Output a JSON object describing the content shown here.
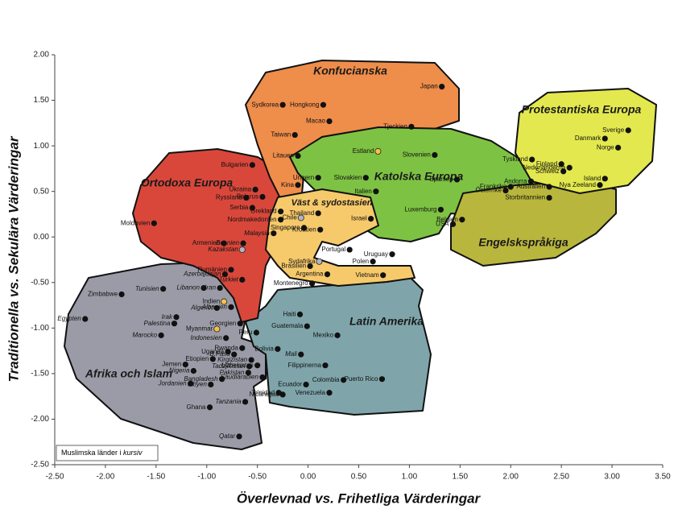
{
  "chart_data": {
    "type": "scatter",
    "xlabel": "Överlevnad vs. Frihetliga Värderingar",
    "ylabel": "Traditionella vs. Sekulära Värderingar",
    "note": {
      "text": "Muslimska länder i",
      "emphasis": "kursiv"
    },
    "xlim": [
      -2.5,
      3.5
    ],
    "ylim": [
      -2.5,
      2.0
    ],
    "xticks": [
      {
        "value": -2.5,
        "label": "-2.50"
      },
      {
        "value": -2,
        "label": "-2.00"
      },
      {
        "value": -1.5,
        "label": "-1.50"
      },
      {
        "value": -1,
        "label": "-1.00"
      },
      {
        "value": -0.5,
        "label": "-0.50"
      },
      {
        "value": 0,
        "label": "0.00"
      },
      {
        "value": 0.5,
        "label": "0.50"
      },
      {
        "value": 1,
        "label": "1.00"
      },
      {
        "value": 1.5,
        "label": "1.50"
      },
      {
        "value": 2,
        "label": "2.00"
      },
      {
        "value": 2.5,
        "label": "2.50"
      },
      {
        "value": 3,
        "label": "3.00"
      },
      {
        "value": 3.5,
        "label": "3.50"
      }
    ],
    "yticks": [
      {
        "value": -2.5,
        "label": "-2.50"
      },
      {
        "value": -2,
        "label": "-2.00"
      },
      {
        "value": -1.5,
        "label": "-1.50"
      },
      {
        "value": -1,
        "label": "-1.00"
      },
      {
        "value": -0.5,
        "label": "-0.50"
      },
      {
        "value": 0,
        "label": "0.00"
      },
      {
        "value": 0.5,
        "label": "0.50"
      },
      {
        "value": 1,
        "label": "1.00"
      },
      {
        "value": 1.5,
        "label": "1.50"
      },
      {
        "value": 2,
        "label": "2.00"
      }
    ],
    "regions": [
      {
        "name": "Afrika och Islam",
        "color": "#9b9ba8"
      },
      {
        "name": "Latin Amerika",
        "color": "#7fa5ab"
      },
      {
        "name": "Ortodoxa Europa",
        "color": "#d9473b"
      },
      {
        "name": "Konfucianska",
        "color": "#ef8d4b"
      },
      {
        "name": "Katolska Europa",
        "color": "#7ec243"
      },
      {
        "name": "Engelskspråkiga",
        "color": "#b9b63d"
      },
      {
        "name": "Protestantiska Europa",
        "color": "#e3e84e"
      },
      {
        "name": "Väst & sydostasien",
        "color": "#f6c96b"
      }
    ],
    "color": "#111111",
    "points": [
      {
        "label": "Japan",
        "x": 1.32,
        "y": 1.65
      },
      {
        "label": "Sydkorea",
        "x": -0.25,
        "y": 1.45
      },
      {
        "label": "Hongkong",
        "x": 0.15,
        "y": 1.45
      },
      {
        "label": "Macao",
        "x": 0.21,
        "y": 1.27
      },
      {
        "label": "Taiwan",
        "x": -0.13,
        "y": 1.12
      },
      {
        "label": "Tjeckien",
        "x": 1.02,
        "y": 1.21
      },
      {
        "label": "Estland",
        "x": 0.69,
        "y": 0.94,
        "color": "#f5c342"
      },
      {
        "label": "Litauen",
        "x": -0.1,
        "y": 0.89
      },
      {
        "label": "Slovenien",
        "x": 1.25,
        "y": 0.9
      },
      {
        "label": "Bulgarien",
        "x": -0.55,
        "y": 0.79
      },
      {
        "label": "Ungern",
        "x": 0.1,
        "y": 0.65
      },
      {
        "label": "Slovakien",
        "x": 0.57,
        "y": 0.65
      },
      {
        "label": "Spanien",
        "x": 1.47,
        "y": 0.63
      },
      {
        "label": "Kina",
        "x": -0.1,
        "y": 0.57
      },
      {
        "label": "Ukraina",
        "x": -0.52,
        "y": 0.52
      },
      {
        "label": "Ryssland",
        "x": -0.61,
        "y": 0.43
      },
      {
        "label": "Belarus",
        "x": -0.45,
        "y": 0.44
      },
      {
        "label": "Andorra",
        "x": 2.2,
        "y": 0.61
      },
      {
        "label": "Österrike",
        "x": 1.95,
        "y": 0.51
      },
      {
        "label": "Frankrike",
        "x": 2.0,
        "y": 0.55
      },
      {
        "label": "Tyskland",
        "x": 2.21,
        "y": 0.85
      },
      {
        "label": "Finland",
        "x": 2.5,
        "y": 0.8
      },
      {
        "label": "Nederländerna",
        "x": 2.58,
        "y": 0.76
      },
      {
        "label": "Schweiz",
        "x": 2.52,
        "y": 0.72
      },
      {
        "label": "Australien",
        "x": 2.38,
        "y": 0.55
      },
      {
        "label": "Storbritannien",
        "x": 2.38,
        "y": 0.43
      },
      {
        "label": "Nya Zeeland",
        "x": 2.88,
        "y": 0.57
      },
      {
        "label": "Island",
        "x": 2.93,
        "y": 0.64
      },
      {
        "label": "Danmark",
        "x": 2.93,
        "y": 1.08
      },
      {
        "label": "Sverige",
        "x": 3.16,
        "y": 1.17
      },
      {
        "label": "Norge",
        "x": 3.06,
        "y": 0.98
      },
      {
        "label": "Italien",
        "x": 0.67,
        "y": 0.5
      },
      {
        "label": "Luxemburg",
        "x": 1.31,
        "y": 0.3
      },
      {
        "label": "Belgien",
        "x": 1.52,
        "y": 0.19
      },
      {
        "label": "USA",
        "x": 1.43,
        "y": 0.14
      },
      {
        "label": "Serbia",
        "x": -0.55,
        "y": 0.32
      },
      {
        "label": "Grekland",
        "x": -0.27,
        "y": 0.28
      },
      {
        "label": "Nordmakedonien",
        "x": -0.27,
        "y": 0.19
      },
      {
        "label": "Moldavien",
        "x": -1.52,
        "y": 0.15
      },
      {
        "label": "Thailand",
        "x": 0.1,
        "y": 0.26
      },
      {
        "label": "Chile",
        "x": -0.07,
        "y": 0.21,
        "color": "#b3b3c2"
      },
      {
        "label": "Israel",
        "x": 0.62,
        "y": 0.2
      },
      {
        "label": "Singapore",
        "x": -0.04,
        "y": 0.1
      },
      {
        "label": "Kroatien",
        "x": 0.12,
        "y": 0.08
      },
      {
        "label": "Malaysia",
        "x": -0.34,
        "y": 0.04,
        "style": "italic"
      },
      {
        "label": "Bosnien",
        "x": -0.64,
        "y": -0.07,
        "style": "italic"
      },
      {
        "label": "Armenien",
        "x": -0.83,
        "y": -0.07
      },
      {
        "label": "Kazakstan",
        "x": -0.65,
        "y": -0.14,
        "style": "italic",
        "color": "#b3b3c2"
      },
      {
        "label": "Portugal",
        "x": 0.41,
        "y": -0.14
      },
      {
        "label": "Uruguay",
        "x": 0.83,
        "y": -0.19
      },
      {
        "label": "Polen",
        "x": 0.64,
        "y": -0.27
      },
      {
        "label": "Sydafrika",
        "x": 0.11,
        "y": -0.27,
        "color": "#b3b3c2"
      },
      {
        "label": "Brasilien",
        "x": 0.02,
        "y": -0.32
      },
      {
        "label": "Rumänien",
        "x": -0.76,
        "y": -0.36
      },
      {
        "label": "Azerbajdzjan",
        "x": -0.82,
        "y": -0.41,
        "style": "italic"
      },
      {
        "label": "Turkiet",
        "x": -0.65,
        "y": -0.47,
        "style": "italic"
      },
      {
        "label": "Vietnam",
        "x": 0.74,
        "y": -0.42
      },
      {
        "label": "Argentina",
        "x": 0.19,
        "y": -0.41
      },
      {
        "label": "Montenegro",
        "x": 0.04,
        "y": -0.51
      },
      {
        "label": "Tunisien",
        "x": -1.43,
        "y": -0.57,
        "style": "italic"
      },
      {
        "label": "Libanon",
        "x": -1.03,
        "y": -0.56,
        "style": "italic"
      },
      {
        "label": "Iran",
        "x": -0.87,
        "y": -0.56,
        "style": "italic"
      },
      {
        "label": "Zimbabwe",
        "x": -1.84,
        "y": -0.63
      },
      {
        "label": "Indien",
        "x": -0.83,
        "y": -0.71,
        "color": "#f5c342"
      },
      {
        "label": "Albanien",
        "x": -0.76,
        "y": -0.77,
        "style": "italic"
      },
      {
        "label": "Algeriet",
        "x": -0.9,
        "y": -0.78,
        "style": "italic"
      },
      {
        "label": "Haiti",
        "x": -0.08,
        "y": -0.85
      },
      {
        "label": "Egypten",
        "x": -2.2,
        "y": -0.9,
        "style": "italic"
      },
      {
        "label": "Irak",
        "x": -1.3,
        "y": -0.88,
        "style": "italic"
      },
      {
        "label": "Palestina",
        "x": -1.32,
        "y": -0.95,
        "style": "italic"
      },
      {
        "label": "Georgien",
        "x": -0.67,
        "y": -0.95
      },
      {
        "label": "Myanmar",
        "x": -0.9,
        "y": -1.01,
        "color": "#f5c342"
      },
      {
        "label": "Peru",
        "x": -0.51,
        "y": -1.05
      },
      {
        "label": "Marocko",
        "x": -1.45,
        "y": -1.08,
        "style": "italic"
      },
      {
        "label": "Indonesien",
        "x": -0.81,
        "y": -1.11,
        "style": "italic"
      },
      {
        "label": "Guatemala",
        "x": -0.01,
        "y": -0.98
      },
      {
        "label": "Mexiko",
        "x": 0.29,
        "y": -1.08
      },
      {
        "label": "Rwanda",
        "x": -0.65,
        "y": -1.22
      },
      {
        "label": "Uganda",
        "x": -0.79,
        "y": -1.26
      },
      {
        "label": "Bolivia",
        "x": -0.3,
        "y": -1.23
      },
      {
        "label": "B.Faso",
        "x": -0.73,
        "y": -1.29,
        "style": "italic"
      },
      {
        "label": "Etiopien",
        "x": -0.94,
        "y": -1.34
      },
      {
        "label": "Kirgizistan",
        "x": -0.56,
        "y": -1.35,
        "style": "italic"
      },
      {
        "label": "Mali",
        "x": -0.07,
        "y": -1.29,
        "style": "italic"
      },
      {
        "label": "Filippinerna",
        "x": 0.17,
        "y": -1.41
      },
      {
        "label": "Jemen",
        "x": -1.21,
        "y": -1.4
      },
      {
        "label": "Tadzjikistan",
        "x": -0.58,
        "y": -1.42,
        "style": "italic"
      },
      {
        "label": "Uzbekistan",
        "x": -0.5,
        "y": -1.41,
        "style": "italic"
      },
      {
        "label": "Nigeria",
        "x": -1.13,
        "y": -1.47,
        "style": "italic"
      },
      {
        "label": "Pakistan",
        "x": -0.59,
        "y": -1.49,
        "style": "italic"
      },
      {
        "label": "Puerto Rico",
        "x": 0.73,
        "y": -1.56
      },
      {
        "label": "Bangladesh",
        "x": -0.85,
        "y": -1.56,
        "style": "italic"
      },
      {
        "label": "Saudiarabien",
        "x": -0.45,
        "y": -1.54,
        "style": "italic"
      },
      {
        "label": "Jordanien",
        "x": -1.16,
        "y": -1.61,
        "style": "italic"
      },
      {
        "label": "Libyen",
        "x": -0.96,
        "y": -1.62,
        "style": "italic"
      },
      {
        "label": "Colombia",
        "x": 0.35,
        "y": -1.57
      },
      {
        "label": "Ecuador",
        "x": -0.02,
        "y": -1.62
      },
      {
        "label": "Trinidad",
        "x": -0.29,
        "y": -1.71
      },
      {
        "label": "Nicaragua",
        "x": -0.25,
        "y": -1.73
      },
      {
        "label": "Venezuela",
        "x": 0.21,
        "y": -1.71
      },
      {
        "label": "Tanzania",
        "x": -0.62,
        "y": -1.81,
        "style": "italic"
      },
      {
        "label": "Ghana",
        "x": -0.97,
        "y": -1.87
      },
      {
        "label": "Qatar",
        "x": -0.68,
        "y": -2.19,
        "style": "italic"
      }
    ]
  }
}
